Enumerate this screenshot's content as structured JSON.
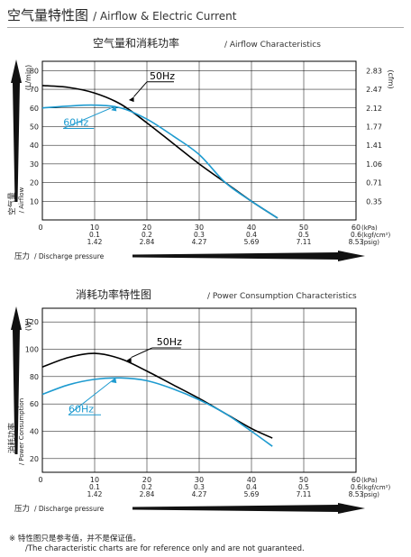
{
  "header": {
    "title_cn": "空气量特性图",
    "title_en": "/ Airflow & Electric Current"
  },
  "colors": {
    "hz50": "#000000",
    "hz60": "#1e9bd0",
    "axis": "#000000",
    "grid": "#000000"
  },
  "pressure_ticks": {
    "kpa": [
      "10",
      "20",
      "30",
      "40",
      "50",
      "60"
    ],
    "kgf": [
      "0.1",
      "0.2",
      "0.3",
      "0.4",
      "0.5",
      "0.6"
    ],
    "psig": [
      "1.42",
      "2.84",
      "4.27",
      "5.69",
      "7.11",
      "8.53"
    ],
    "unit_kpa": "(kPa)",
    "unit_kgf": "(kgf/cm²)",
    "unit_psig": "(psig)",
    "zero": "0"
  },
  "chart_data": [
    {
      "type": "line",
      "title_cn": "空气量和消耗功率",
      "title_en": "/ Airflow Characteristics",
      "xlabel_cn": "压力",
      "xlabel_en": "/ Discharge pressure",
      "ylabel_cn": "空气量",
      "ylabel_en": "/ Airflow",
      "y_unit": "(L/min)",
      "y2_unit": "(cfm)",
      "xlim": [
        0,
        60
      ],
      "ylim": [
        0,
        85
      ],
      "yticks": [
        10,
        20,
        30,
        40,
        50,
        60,
        70,
        80
      ],
      "y2ticks": [
        "0.35",
        "0.71",
        "1.06",
        "1.41",
        "1.77",
        "2.12",
        "2.47",
        "2.83"
      ],
      "grid": true,
      "series": [
        {
          "name": "50Hz",
          "x": [
            0,
            5,
            10,
            15,
            20,
            25,
            30,
            35,
            40,
            45
          ],
          "y": [
            72,
            71,
            68,
            62,
            52,
            41,
            30,
            20,
            10,
            1
          ]
        },
        {
          "name": "60Hz",
          "x": [
            0,
            5,
            10,
            15,
            20,
            25,
            30,
            35,
            40,
            45
          ],
          "y": [
            60,
            61,
            61.5,
            60,
            54,
            45,
            35,
            20,
            10,
            1
          ]
        }
      ]
    },
    {
      "type": "line",
      "title_cn": "消耗功率特性图",
      "title_en": "/ Power Consumption Characteristics",
      "xlabel_cn": "压力",
      "xlabel_en": "/ Discharge pressure",
      "ylabel_cn": "消耗功率",
      "ylabel_en": "/ Power Consumption",
      "y_unit": "(W)",
      "xlim": [
        0,
        60
      ],
      "ylim": [
        10,
        130
      ],
      "yticks": [
        20,
        40,
        60,
        80,
        100,
        120
      ],
      "grid": true,
      "series": [
        {
          "name": "50Hz",
          "x": [
            0,
            5,
            10,
            15,
            20,
            25,
            30,
            35,
            40,
            44
          ],
          "y": [
            87,
            94,
            97,
            93,
            84,
            74,
            64,
            53,
            42,
            35
          ]
        },
        {
          "name": "60Hz",
          "x": [
            0,
            5,
            10,
            15,
            20,
            25,
            30,
            35,
            40,
            44
          ],
          "y": [
            67,
            74,
            78,
            79,
            77,
            71,
            63,
            53,
            40,
            29
          ]
        }
      ]
    }
  ],
  "notes": {
    "line1": "※ 特性图只是参考值，并不是保证值。",
    "line2": "/The characteristic charts are for reference only and are not guaranteed."
  }
}
